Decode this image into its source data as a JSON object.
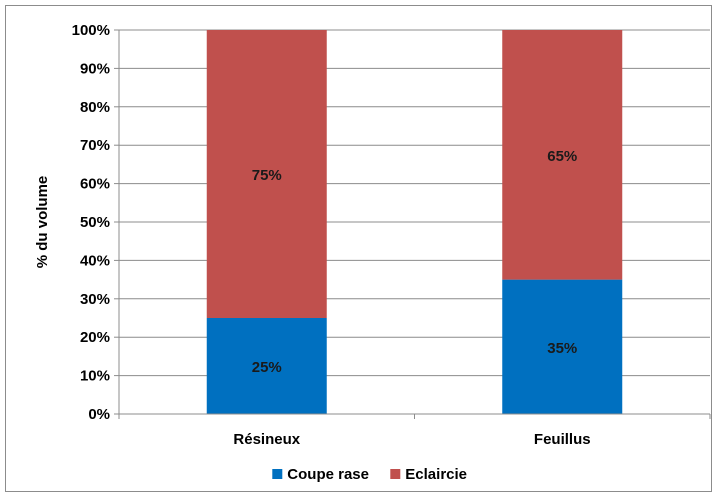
{
  "chart_data": {
    "type": "bar",
    "stacked": true,
    "percent": true,
    "categories": [
      "Résineux",
      "Feuillus"
    ],
    "series": [
      {
        "name": "Coupe rase",
        "values": [
          25,
          35
        ],
        "labels": [
          "25%",
          "35%"
        ],
        "color": "#0070c0"
      },
      {
        "name": "Eclaircie",
        "values": [
          75,
          65
        ],
        "labels": [
          "75%",
          "65%"
        ],
        "color": "#c0504d"
      }
    ],
    "ylabel": "% du volume",
    "xlabel": "",
    "ylim": [
      0,
      100
    ],
    "yticks": [
      0,
      10,
      20,
      30,
      40,
      50,
      60,
      70,
      80,
      90,
      100
    ],
    "ytick_labels": [
      "0%",
      "10%",
      "20%",
      "30%",
      "40%",
      "50%",
      "60%",
      "70%",
      "80%",
      "90%",
      "100%"
    ],
    "grid": true,
    "legend_position": "bottom"
  }
}
